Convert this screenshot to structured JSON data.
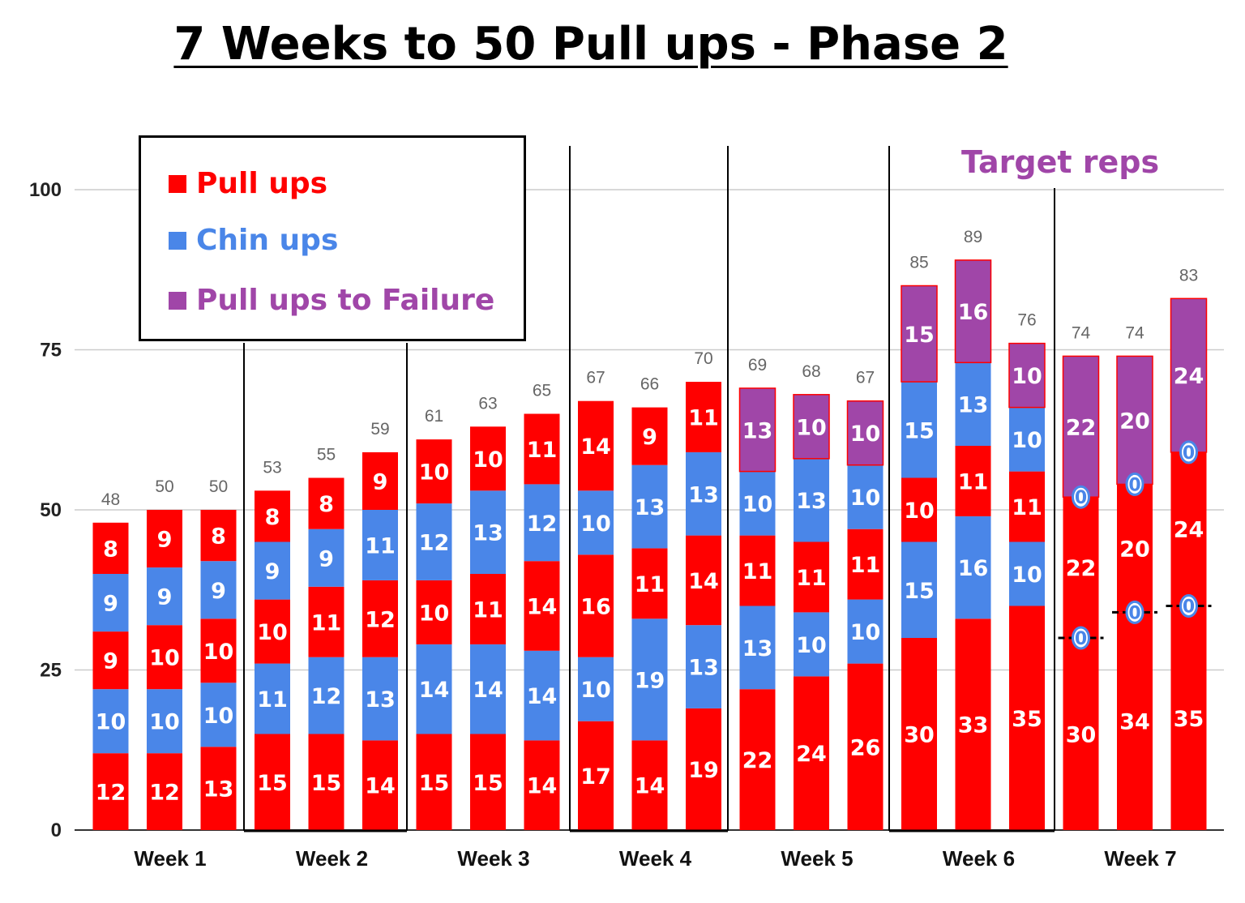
{
  "title": "7 Weeks to 50 Pull ups - Phase 2",
  "target_label": "Target reps",
  "chart_data": {
    "type": "bar",
    "stacked": true,
    "ylim": [
      0,
      100
    ],
    "yticks": [
      0,
      25,
      50,
      75,
      100
    ],
    "grid": true,
    "legend_position": "top-left",
    "weeks": [
      "Week 1",
      "Week 2",
      "Week 3",
      "Week 4",
      "Week 5",
      "Week 6",
      "Week 7"
    ],
    "colors": {
      "pull": "#ff0000",
      "chin": "#4a86e8",
      "failure": "#a046a8"
    },
    "legend": [
      {
        "label": "Pull ups",
        "color": "#ff0000"
      },
      {
        "label": "Chin ups",
        "color": "#4a86e8"
      },
      {
        "label": "Pull ups to Failure",
        "color": "#a046a8"
      }
    ],
    "bars": [
      {
        "week": 1,
        "total": 48,
        "segments": [
          [
            "pull",
            12
          ],
          [
            "chin",
            10
          ],
          [
            "pull",
            9
          ],
          [
            "chin",
            9
          ],
          [
            "pull",
            8
          ]
        ]
      },
      {
        "week": 1,
        "total": 50,
        "segments": [
          [
            "pull",
            12
          ],
          [
            "chin",
            10
          ],
          [
            "pull",
            10
          ],
          [
            "chin",
            9
          ],
          [
            "pull",
            9
          ]
        ]
      },
      {
        "week": 1,
        "total": 50,
        "segments": [
          [
            "pull",
            13
          ],
          [
            "chin",
            10
          ],
          [
            "pull",
            10
          ],
          [
            "chin",
            9
          ],
          [
            "pull",
            8
          ]
        ]
      },
      {
        "week": 2,
        "total": 53,
        "segments": [
          [
            "pull",
            15
          ],
          [
            "chin",
            11
          ],
          [
            "pull",
            10
          ],
          [
            "chin",
            9
          ],
          [
            "pull",
            8
          ]
        ]
      },
      {
        "week": 2,
        "total": 55,
        "segments": [
          [
            "pull",
            15
          ],
          [
            "chin",
            12
          ],
          [
            "pull",
            11
          ],
          [
            "chin",
            9
          ],
          [
            "pull",
            8
          ]
        ]
      },
      {
        "week": 2,
        "total": 59,
        "segments": [
          [
            "pull",
            14
          ],
          [
            "chin",
            13
          ],
          [
            "pull",
            12
          ],
          [
            "chin",
            11
          ],
          [
            "pull",
            9
          ]
        ]
      },
      {
        "week": 3,
        "total": 61,
        "segments": [
          [
            "pull",
            15
          ],
          [
            "chin",
            14
          ],
          [
            "pull",
            10
          ],
          [
            "chin",
            12
          ],
          [
            "pull",
            10
          ]
        ]
      },
      {
        "week": 3,
        "total": 63,
        "segments": [
          [
            "pull",
            15
          ],
          [
            "chin",
            14
          ],
          [
            "pull",
            11
          ],
          [
            "chin",
            13
          ],
          [
            "pull",
            10
          ]
        ]
      },
      {
        "week": 3,
        "total": 65,
        "segments": [
          [
            "pull",
            14
          ],
          [
            "chin",
            14
          ],
          [
            "pull",
            14
          ],
          [
            "chin",
            12
          ],
          [
            "pull",
            11
          ]
        ]
      },
      {
        "week": 4,
        "total": 67,
        "segments": [
          [
            "pull",
            17
          ],
          [
            "chin",
            10
          ],
          [
            "pull",
            16
          ],
          [
            "chin",
            10
          ],
          [
            "pull",
            14
          ]
        ]
      },
      {
        "week": 4,
        "total": 66,
        "segments": [
          [
            "pull",
            14
          ],
          [
            "chin",
            19
          ],
          [
            "pull",
            11
          ],
          [
            "chin",
            13
          ],
          [
            "pull",
            9
          ]
        ]
      },
      {
        "week": 4,
        "total": 70,
        "segments": [
          [
            "pull",
            19
          ],
          [
            "chin",
            13
          ],
          [
            "pull",
            14
          ],
          [
            "chin",
            13
          ],
          [
            "pull",
            11
          ]
        ]
      },
      {
        "week": 5,
        "total": 69,
        "segments": [
          [
            "pull",
            22
          ],
          [
            "chin",
            13
          ],
          [
            "pull",
            11
          ],
          [
            "chin",
            10
          ],
          [
            "failure",
            13
          ]
        ]
      },
      {
        "week": 5,
        "total": 68,
        "segments": [
          [
            "pull",
            24
          ],
          [
            "chin",
            10
          ],
          [
            "pull",
            11
          ],
          [
            "chin",
            13
          ],
          [
            "failure",
            10
          ]
        ]
      },
      {
        "week": 5,
        "total": 67,
        "segments": [
          [
            "pull",
            26
          ],
          [
            "chin",
            10
          ],
          [
            "pull",
            11
          ],
          [
            "chin",
            10
          ],
          [
            "failure",
            10
          ]
        ]
      },
      {
        "week": 6,
        "total": 85,
        "segments": [
          [
            "pull",
            30
          ],
          [
            "chin",
            15
          ],
          [
            "pull",
            10
          ],
          [
            "chin",
            15
          ],
          [
            "failure",
            15
          ]
        ]
      },
      {
        "week": 6,
        "total": 89,
        "segments": [
          [
            "pull",
            33
          ],
          [
            "chin",
            16
          ],
          [
            "pull",
            11
          ],
          [
            "chin",
            13
          ],
          [
            "failure",
            16
          ]
        ]
      },
      {
        "week": 6,
        "total": 76,
        "segments": [
          [
            "pull",
            35
          ],
          [
            "chin",
            10
          ],
          [
            "pull",
            11
          ],
          [
            "chin",
            10
          ],
          [
            "failure",
            10
          ]
        ]
      },
      {
        "week": 7,
        "total": 74,
        "segments": [
          [
            "pull",
            30
          ],
          [
            "chin",
            0
          ],
          [
            "pull",
            22
          ],
          [
            "chin",
            0
          ],
          [
            "failure",
            22
          ]
        ]
      },
      {
        "week": 7,
        "total": 74,
        "segments": [
          [
            "pull",
            34
          ],
          [
            "chin",
            0
          ],
          [
            "pull",
            20
          ],
          [
            "chin",
            0
          ],
          [
            "failure",
            20
          ]
        ]
      },
      {
        "week": 7,
        "total": 83,
        "segments": [
          [
            "pull",
            35
          ],
          [
            "chin",
            0
          ],
          [
            "pull",
            24
          ],
          [
            "chin",
            0
          ],
          [
            "failure",
            24
          ]
        ]
      }
    ]
  }
}
